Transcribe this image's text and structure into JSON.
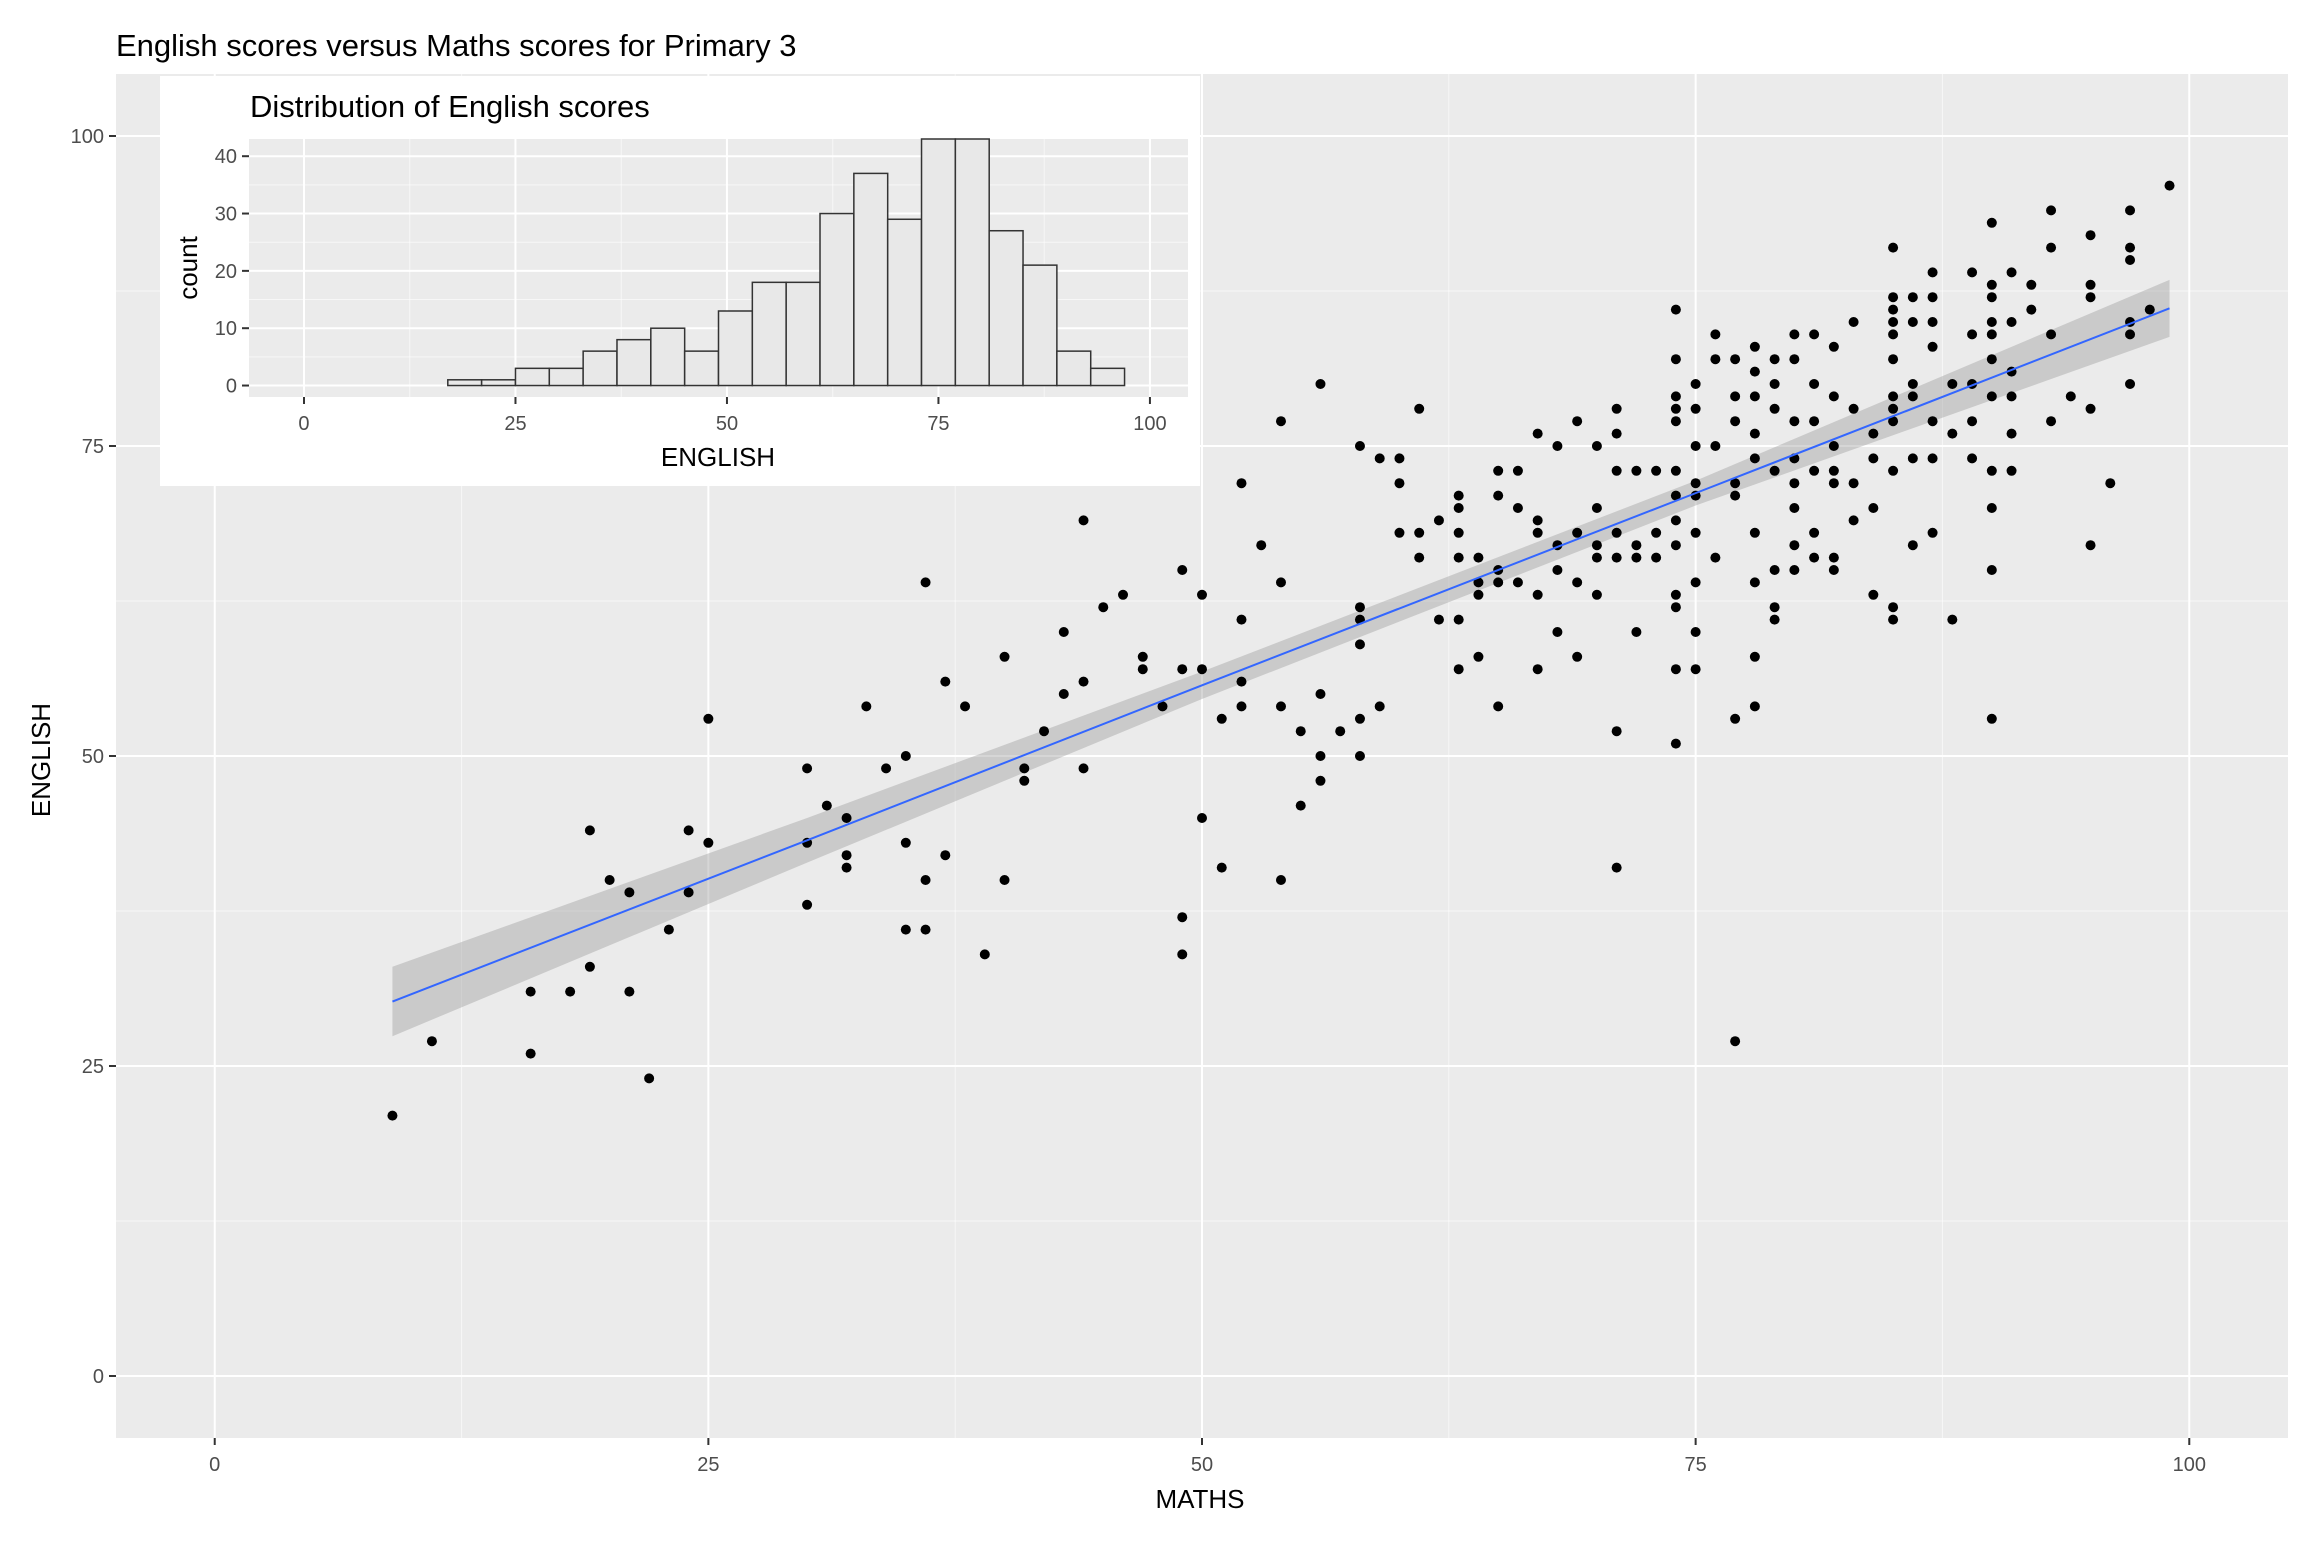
{
  "colors": {
    "panel": "#ebebeb",
    "grid_major": "#ffffff",
    "point": "#000000",
    "fit_line": "#3366ff",
    "ribbon": "#999999",
    "bar_fill": "#e8e8e8",
    "bar_stroke": "#333333"
  },
  "chart_data": [
    {
      "id": "main",
      "type": "scatter",
      "title": "English scores versus Maths scores for Primary 3",
      "xlabel": "MATHS",
      "ylabel": "ENGLISH",
      "xlim": [
        -5,
        105
      ],
      "ylim": [
        -5,
        105
      ],
      "xticks": [
        0,
        25,
        50,
        75,
        100
      ],
      "xtick_labels": [
        "0",
        "25",
        "50",
        "75",
        "100"
      ],
      "yticks": [
        0,
        25,
        50,
        75,
        100
      ],
      "ytick_labels": [
        "0",
        "25",
        "50",
        "75",
        "100"
      ],
      "grid": true,
      "points": [
        [
          9,
          21
        ],
        [
          11,
          27
        ],
        [
          16,
          31
        ],
        [
          16,
          26
        ],
        [
          18,
          31
        ],
        [
          19,
          44
        ],
        [
          19,
          33
        ],
        [
          20,
          40
        ],
        [
          21,
          39
        ],
        [
          21,
          31
        ],
        [
          22,
          24
        ],
        [
          23,
          36
        ],
        [
          24,
          44
        ],
        [
          24,
          39
        ],
        [
          25,
          53
        ],
        [
          25,
          43
        ],
        [
          30,
          49
        ],
        [
          30,
          43
        ],
        [
          30,
          38
        ],
        [
          31,
          46
        ],
        [
          32,
          45
        ],
        [
          32,
          42
        ],
        [
          32,
          41
        ],
        [
          33,
          54
        ],
        [
          34,
          49
        ],
        [
          35,
          50
        ],
        [
          35,
          43
        ],
        [
          35,
          36
        ],
        [
          36,
          64
        ],
        [
          36,
          40
        ],
        [
          36,
          36
        ],
        [
          37,
          56
        ],
        [
          37,
          42
        ],
        [
          38,
          54
        ],
        [
          39,
          34
        ],
        [
          40,
          58
        ],
        [
          40,
          40
        ],
        [
          41,
          49
        ],
        [
          41,
          48
        ],
        [
          42,
          52
        ],
        [
          43,
          60
        ],
        [
          43,
          55
        ],
        [
          44,
          69
        ],
        [
          44,
          56
        ],
        [
          44,
          49
        ],
        [
          45,
          62
        ],
        [
          46,
          63
        ],
        [
          47,
          58
        ],
        [
          47,
          57
        ],
        [
          48,
          54
        ],
        [
          49,
          65
        ],
        [
          49,
          57
        ],
        [
          49,
          37
        ],
        [
          49,
          34
        ],
        [
          50,
          63
        ],
        [
          50,
          57
        ],
        [
          50,
          45
        ],
        [
          51,
          53
        ],
        [
          51,
          41
        ],
        [
          52,
          72
        ],
        [
          52,
          61
        ],
        [
          52,
          56
        ],
        [
          52,
          54
        ],
        [
          53,
          67
        ],
        [
          54,
          77
        ],
        [
          54,
          64
        ],
        [
          54,
          54
        ],
        [
          54,
          40
        ],
        [
          55,
          52
        ],
        [
          55,
          46
        ],
        [
          56,
          80
        ],
        [
          56,
          55
        ],
        [
          56,
          50
        ],
        [
          56,
          48
        ],
        [
          57,
          52
        ],
        [
          58,
          75
        ],
        [
          58,
          62
        ],
        [
          58,
          61
        ],
        [
          58,
          59
        ],
        [
          58,
          53
        ],
        [
          58,
          50
        ],
        [
          59,
          74
        ],
        [
          59,
          54
        ],
        [
          60,
          74
        ],
        [
          60,
          72
        ],
        [
          60,
          68
        ],
        [
          61,
          78
        ],
        [
          61,
          68
        ],
        [
          61,
          66
        ],
        [
          62,
          69
        ],
        [
          62,
          61
        ],
        [
          63,
          71
        ],
        [
          63,
          70
        ],
        [
          63,
          68
        ],
        [
          63,
          66
        ],
        [
          63,
          61
        ],
        [
          63,
          57
        ],
        [
          64,
          66
        ],
        [
          64,
          64
        ],
        [
          64,
          63
        ],
        [
          64,
          58
        ],
        [
          65,
          73
        ],
        [
          65,
          71
        ],
        [
          65,
          65
        ],
        [
          65,
          64
        ],
        [
          65,
          54
        ],
        [
          66,
          73
        ],
        [
          66,
          70
        ],
        [
          66,
          64
        ],
        [
          67,
          76
        ],
        [
          67,
          69
        ],
        [
          67,
          68
        ],
        [
          67,
          63
        ],
        [
          67,
          57
        ],
        [
          68,
          75
        ],
        [
          68,
          67
        ],
        [
          68,
          65
        ],
        [
          68,
          60
        ],
        [
          69,
          77
        ],
        [
          69,
          68
        ],
        [
          69,
          64
        ],
        [
          69,
          58
        ],
        [
          70,
          75
        ],
        [
          70,
          70
        ],
        [
          70,
          67
        ],
        [
          70,
          66
        ],
        [
          70,
          63
        ],
        [
          71,
          78
        ],
        [
          71,
          76
        ],
        [
          71,
          73
        ],
        [
          71,
          68
        ],
        [
          71,
          66
        ],
        [
          71,
          52
        ],
        [
          71,
          41
        ],
        [
          72,
          73
        ],
        [
          72,
          67
        ],
        [
          72,
          66
        ],
        [
          72,
          60
        ],
        [
          73,
          73
        ],
        [
          73,
          68
        ],
        [
          73,
          66
        ],
        [
          74,
          82
        ],
        [
          74,
          86
        ],
        [
          74,
          79
        ],
        [
          74,
          78
        ],
        [
          74,
          77
        ],
        [
          74,
          73
        ],
        [
          74,
          71
        ],
        [
          74,
          69
        ],
        [
          74,
          67
        ],
        [
          74,
          63
        ],
        [
          74,
          62
        ],
        [
          74,
          57
        ],
        [
          74,
          51
        ],
        [
          75,
          80
        ],
        [
          75,
          78
        ],
        [
          75,
          75
        ],
        [
          75,
          72
        ],
        [
          75,
          71
        ],
        [
          75,
          68
        ],
        [
          75,
          64
        ],
        [
          75,
          60
        ],
        [
          75,
          57
        ],
        [
          76,
          84
        ],
        [
          76,
          82
        ],
        [
          76,
          75
        ],
        [
          76,
          66
        ],
        [
          77,
          82
        ],
        [
          77,
          79
        ],
        [
          77,
          77
        ],
        [
          77,
          72
        ],
        [
          77,
          71
        ],
        [
          77,
          53
        ],
        [
          77,
          27
        ],
        [
          78,
          83
        ],
        [
          78,
          81
        ],
        [
          78,
          79
        ],
        [
          78,
          76
        ],
        [
          78,
          74
        ],
        [
          78,
          68
        ],
        [
          78,
          64
        ],
        [
          78,
          58
        ],
        [
          78,
          54
        ],
        [
          79,
          82
        ],
        [
          79,
          80
        ],
        [
          79,
          78
        ],
        [
          79,
          73
        ],
        [
          79,
          65
        ],
        [
          79,
          62
        ],
        [
          79,
          61
        ],
        [
          80,
          84
        ],
        [
          80,
          82
        ],
        [
          80,
          77
        ],
        [
          80,
          74
        ],
        [
          80,
          72
        ],
        [
          80,
          70
        ],
        [
          80,
          67
        ],
        [
          80,
          65
        ],
        [
          81,
          84
        ],
        [
          81,
          80
        ],
        [
          81,
          77
        ],
        [
          81,
          73
        ],
        [
          81,
          68
        ],
        [
          81,
          66
        ],
        [
          82,
          83
        ],
        [
          82,
          79
        ],
        [
          82,
          75
        ],
        [
          82,
          73
        ],
        [
          82,
          72
        ],
        [
          82,
          66
        ],
        [
          82,
          65
        ],
        [
          83,
          85
        ],
        [
          83,
          78
        ],
        [
          83,
          72
        ],
        [
          83,
          69
        ],
        [
          84,
          76
        ],
        [
          84,
          74
        ],
        [
          84,
          63
        ],
        [
          84,
          70
        ],
        [
          85,
          91
        ],
        [
          85,
          87
        ],
        [
          85,
          86
        ],
        [
          85,
          85
        ],
        [
          85,
          84
        ],
        [
          85,
          82
        ],
        [
          85,
          79
        ],
        [
          85,
          78
        ],
        [
          85,
          77
        ],
        [
          85,
          73
        ],
        [
          85,
          62
        ],
        [
          85,
          61
        ],
        [
          86,
          87
        ],
        [
          86,
          85
        ],
        [
          86,
          80
        ],
        [
          86,
          79
        ],
        [
          86,
          74
        ],
        [
          86,
          67
        ],
        [
          87,
          89
        ],
        [
          87,
          87
        ],
        [
          87,
          85
        ],
        [
          87,
          83
        ],
        [
          87,
          77
        ],
        [
          87,
          74
        ],
        [
          87,
          68
        ],
        [
          88,
          80
        ],
        [
          88,
          76
        ],
        [
          88,
          61
        ],
        [
          89,
          89
        ],
        [
          89,
          84
        ],
        [
          89,
          80
        ],
        [
          89,
          77
        ],
        [
          89,
          74
        ],
        [
          90,
          93
        ],
        [
          90,
          88
        ],
        [
          90,
          87
        ],
        [
          90,
          85
        ],
        [
          90,
          84
        ],
        [
          90,
          82
        ],
        [
          90,
          79
        ],
        [
          90,
          73
        ],
        [
          90,
          70
        ],
        [
          90,
          65
        ],
        [
          90,
          53
        ],
        [
          91,
          89
        ],
        [
          91,
          85
        ],
        [
          91,
          81
        ],
        [
          91,
          79
        ],
        [
          91,
          76
        ],
        [
          91,
          73
        ],
        [
          92,
          88
        ],
        [
          92,
          86
        ],
        [
          93,
          94
        ],
        [
          93,
          91
        ],
        [
          93,
          84
        ],
        [
          93,
          77
        ],
        [
          94,
          79
        ],
        [
          95,
          92
        ],
        [
          95,
          88
        ],
        [
          95,
          87
        ],
        [
          95,
          78
        ],
        [
          95,
          67
        ],
        [
          96,
          72
        ],
        [
          97,
          94
        ],
        [
          97,
          91
        ],
        [
          97,
          90
        ],
        [
          97,
          85
        ],
        [
          97,
          84
        ],
        [
          97,
          80
        ],
        [
          98,
          86
        ],
        [
          99,
          96
        ]
      ],
      "fit": {
        "method": "linear",
        "x": [
          9,
          30,
          50,
          75,
          99
        ],
        "y": [
          30.2,
          43.2,
          55.7,
          71.2,
          86.1
        ],
        "se_lower": [
          27.4,
          41.4,
          54.6,
          70.2,
          83.8
        ],
        "se_upper": [
          33.0,
          45.0,
          56.8,
          72.2,
          88.4
        ]
      }
    },
    {
      "id": "inset",
      "type": "bar",
      "title": "Distribution of English scores",
      "xlabel": "ENGLISH",
      "ylabel": "count",
      "xlim": [
        -6.5,
        104.5
      ],
      "ylim": [
        -2,
        43
      ],
      "xticks": [
        0,
        25,
        50,
        75,
        100
      ],
      "xtick_labels": [
        "0",
        "25",
        "50",
        "75",
        "100"
      ],
      "yticks": [
        0,
        10,
        20,
        30,
        40
      ],
      "ytick_labels": [
        "0",
        "10",
        "20",
        "30",
        "40"
      ],
      "grid": true,
      "bin_edges": [
        17,
        21,
        25,
        29,
        33,
        37,
        41,
        45,
        49,
        53,
        57,
        61,
        65,
        69,
        73,
        77,
        81,
        85,
        89,
        93,
        97
      ],
      "values": [
        1,
        1,
        3,
        3,
        6,
        8,
        10,
        6,
        13,
        18,
        18,
        30,
        37,
        29,
        43,
        43,
        27,
        21,
        6,
        3
      ]
    }
  ]
}
